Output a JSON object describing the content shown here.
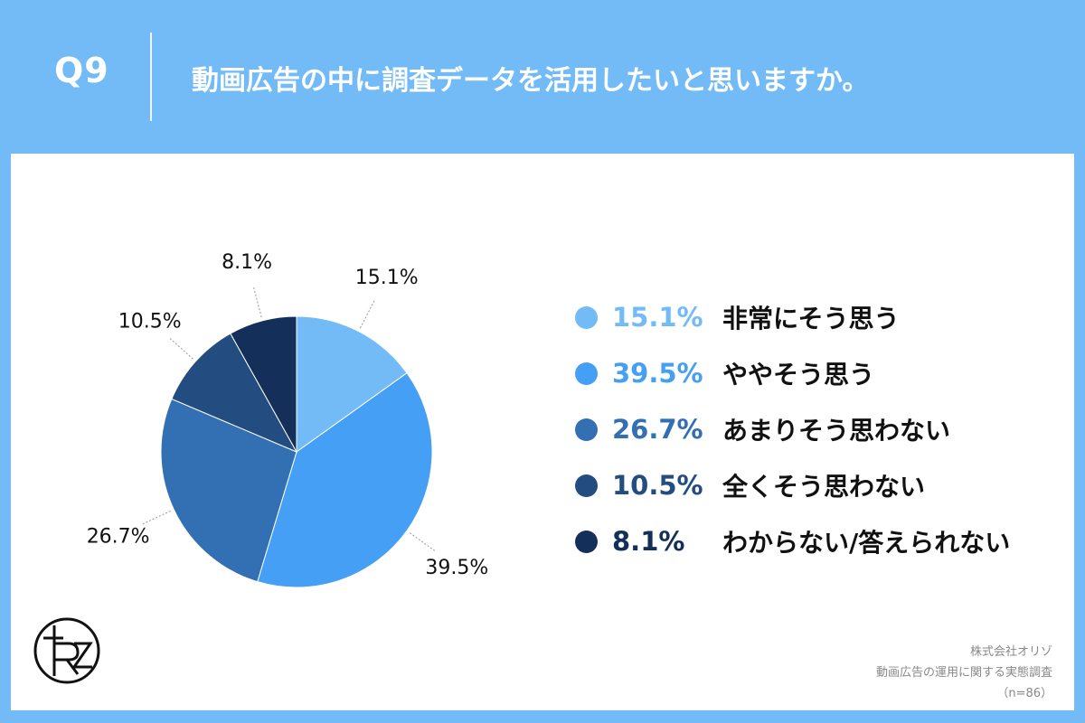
{
  "header": {
    "question_number": "Q9",
    "question_text": "動画広告の中に調査データを活用したいと思いますか。"
  },
  "chart_data": {
    "type": "pie",
    "categories": [
      "非常にそう思う",
      "ややそう思う",
      "あまりそう思わない",
      "全くそう思わない",
      "わからない/答えられない"
    ],
    "values": [
      15.1,
      39.5,
      26.7,
      10.5,
      8.1
    ],
    "value_labels": [
      "15.1%",
      "39.5%",
      "26.7%",
      "10.5%",
      "8.1%"
    ],
    "colors": [
      "#72bbf7",
      "#459ff5",
      "#326fb3",
      "#234d80",
      "#14305a"
    ],
    "legend_text_colors": [
      "#72bbf7",
      "#459ff5",
      "#326fb3",
      "#234d80",
      "#14305a"
    ],
    "start_angle": "12 o'clock",
    "direction": "clockwise",
    "legend_position": "right"
  },
  "legend": {
    "items": [
      {
        "value": "15.1%",
        "label": "非常にそう思う"
      },
      {
        "value": "39.5%",
        "label": "ややそう思う"
      },
      {
        "value": "26.7%",
        "label": "あまりそう思わない"
      },
      {
        "value": "10.5%",
        "label": "全くそう思わない"
      },
      {
        "value": "8.1%",
        "label": "わからない/答えられない"
      }
    ]
  },
  "source": {
    "company": "株式会社オリゾ",
    "survey": "動画広告の運用に関する実態調査",
    "sample": "（n=86）"
  }
}
